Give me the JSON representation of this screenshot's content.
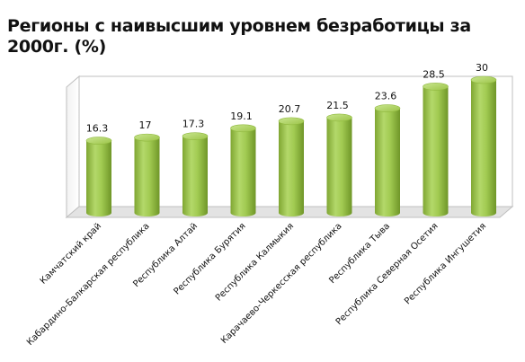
{
  "chart_data": {
    "type": "bar",
    "title": "Регионы с наивысшим уровнем безработицы за 2000г. (%)",
    "categories": [
      "Камчатский край",
      "Кабардино-Балкарская республика",
      "Республика Алтай",
      "Республика Бурятия",
      "Республика Калмыкия",
      "Карачаево-Черкесская республика",
      "Республика Тыва",
      "Республика Северная Осетия",
      "Республика Ингушетия"
    ],
    "values": [
      16.3,
      17,
      17.3,
      19.1,
      20.7,
      21.5,
      23.6,
      28.5,
      30
    ],
    "value_labels": [
      "16.3",
      "17",
      "17.3",
      "19.1",
      "20.7",
      "21.5",
      "23.6",
      "28.5",
      "30"
    ],
    "bar_shape": "cylinder",
    "bar_color": "#9cc448",
    "ylim": [
      0,
      32
    ],
    "grid": false,
    "legend": "none"
  }
}
